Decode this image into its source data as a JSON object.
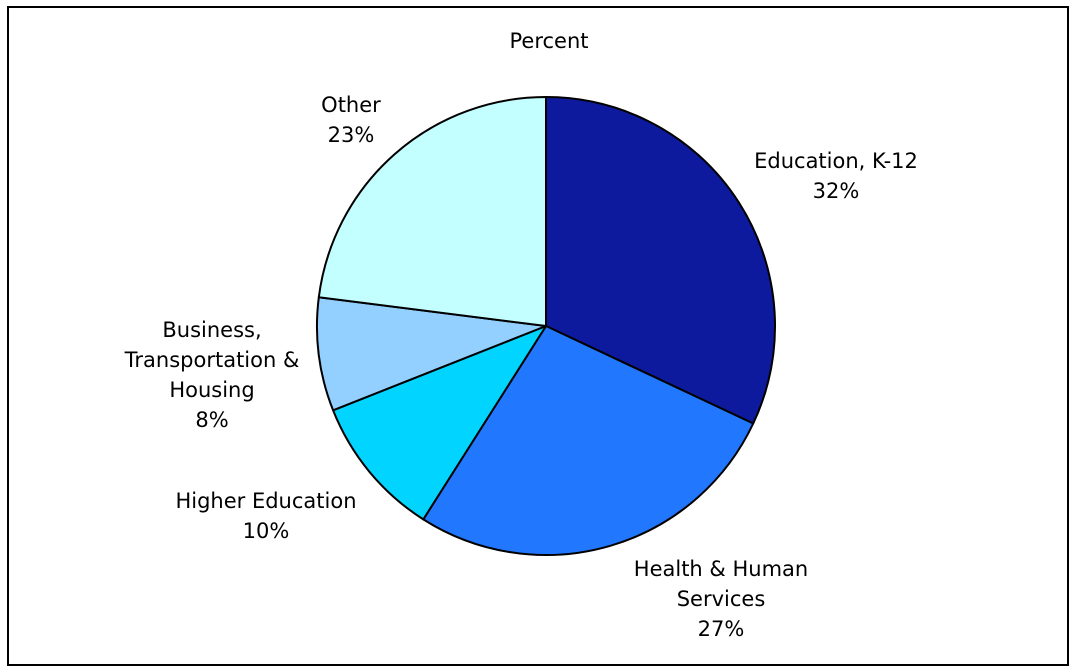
{
  "chart_data": {
    "type": "pie",
    "title": "Percent",
    "start_angle_deg": 0,
    "direction": "clockwise",
    "slices": [
      {
        "key": "education-k12",
        "label_lines": [
          "Education, K-12"
        ],
        "value": 32,
        "value_label": "32%",
        "color": "#0E1A9E"
      },
      {
        "key": "health-human-services",
        "label_lines": [
          "Health & Human",
          "Services"
        ],
        "value": 27,
        "value_label": "27%",
        "color": "#2277FF"
      },
      {
        "key": "higher-education",
        "label_lines": [
          "Higher Education"
        ],
        "value": 10,
        "value_label": "10%",
        "color": "#00D4FF"
      },
      {
        "key": "business-transportation-housing",
        "label_lines": [
          "Business,",
          "Transportation &",
          "Housing"
        ],
        "value": 8,
        "value_label": "8%",
        "color": "#93CFFF"
      },
      {
        "key": "other",
        "label_lines": [
          "Other"
        ],
        "value": 23,
        "value_label": "23%",
        "color": "#C4FFFF"
      }
    ]
  }
}
